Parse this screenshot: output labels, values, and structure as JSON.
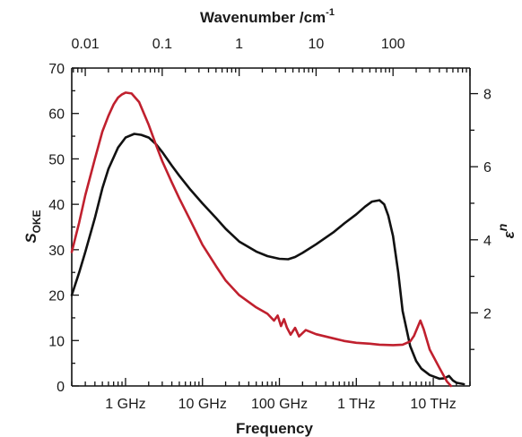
{
  "chart_data": {
    "type": "line",
    "title": "",
    "xlabel": "Frequency",
    "top_xlabel": "Wavenumber /cm",
    "top_xlabel_sup": "-1",
    "ylabel_main": "S",
    "ylabel_sub": "OKE",
    "ylabel_right_main": "ε",
    "ylabel_right_sup": "n",
    "x_scale": "log",
    "x_unit": "Hz",
    "xlim": [
      200000000,
      30000000000000
    ],
    "ylim": [
      0,
      70
    ],
    "y2lim": [
      0,
      8.7
    ],
    "x_tick_labels": [
      {
        "value": 1000000000,
        "label": "1 GHz"
      },
      {
        "value": 10000000000,
        "label": "10 GHz"
      },
      {
        "value": 100000000000,
        "label": "100 GHz"
      },
      {
        "value": 1000000000000,
        "label": "1 THz"
      },
      {
        "value": 10000000000000,
        "label": "10 THz"
      }
    ],
    "top_tick_labels": [
      {
        "value": 0.01,
        "label": "0.01"
      },
      {
        "value": 0.1,
        "label": "0.1"
      },
      {
        "value": 1,
        "label": "1"
      },
      {
        "value": 10,
        "label": "10"
      },
      {
        "value": 100,
        "label": "100"
      }
    ],
    "y_tick_labels": [
      "0",
      "10",
      "20",
      "30",
      "40",
      "50",
      "60",
      "70"
    ],
    "y2_tick_labels": [
      "2",
      "4",
      "6",
      "8"
    ],
    "series": [
      {
        "axis": "left",
        "color": "#111111",
        "x": [
          200000000,
          250000000,
          300000000,
          400000000,
          500000000,
          600000000,
          800000000,
          1000000000,
          1300000000,
          1600000000,
          2000000000,
          2500000000,
          3000000000,
          4000000000,
          5000000000,
          7000000000,
          10000000000,
          15000000000,
          20000000000,
          30000000000,
          50000000000,
          70000000000,
          100000000000,
          130000000000,
          160000000000,
          200000000000,
          300000000000,
          500000000000,
          700000000000,
          1000000000000,
          1300000000000,
          1600000000000,
          2000000000000,
          2300000000000,
          2600000000000,
          3000000000000,
          3500000000000,
          4000000000000,
          5000000000000,
          6000000000000,
          7000000000000,
          9000000000000,
          12000000000000,
          14000000000000,
          16000000000000,
          18000000000000,
          20000000000000,
          25000000000000
        ],
        "y": [
          20,
          25,
          29.5,
          37,
          43.5,
          47.8,
          52.5,
          54.7,
          55.5,
          55.3,
          54.7,
          53.2,
          51.5,
          48.5,
          46.3,
          43.2,
          40.2,
          37,
          34.6,
          31.8,
          29.6,
          28.6,
          28,
          27.9,
          28.4,
          29.3,
          31.2,
          33.8,
          35.8,
          37.8,
          39.5,
          40.6,
          40.9,
          40,
          37.5,
          33,
          25,
          16.5,
          8.8,
          5.5,
          3.8,
          2.4,
          1.6,
          1.7,
          2.2,
          1.2,
          0.7,
          0.4
        ]
      },
      {
        "axis": "left",
        "color": "#c0202e",
        "x": [
          200000000,
          250000000,
          300000000,
          400000000,
          500000000,
          600000000,
          700000000,
          800000000,
          900000000,
          1000000000,
          1200000000,
          1500000000,
          2000000000,
          2500000000,
          3000000000,
          4000000000,
          5000000000,
          7000000000,
          10000000000,
          15000000000,
          20000000000,
          30000000000,
          50000000000,
          70000000000,
          85000000000,
          95000000000,
          105000000000,
          115000000000,
          125000000000,
          140000000000,
          160000000000,
          180000000000,
          220000000000,
          300000000000,
          500000000000,
          700000000000,
          1000000000000,
          1500000000000,
          2000000000000,
          3000000000000,
          4000000000000,
          5000000000000,
          5600000000000,
          6200000000000,
          6800000000000,
          7500000000000,
          9000000000000,
          12000000000000,
          15000000000000,
          17000000000000
        ],
        "y": [
          29.5,
          36,
          42,
          50,
          56,
          59.5,
          62,
          63.5,
          64.2,
          64.6,
          64.4,
          62.5,
          57.5,
          53,
          49.5,
          44.8,
          41.3,
          36.4,
          31.1,
          26.4,
          23.2,
          20,
          17.3,
          15.9,
          14.4,
          15.5,
          13.2,
          14.7,
          12.9,
          11.3,
          12.8,
          10.9,
          12.3,
          11.4,
          10.5,
          9.9,
          9.5,
          9.3,
          9.1,
          9,
          9.1,
          9.8,
          11,
          12.8,
          14.4,
          12.5,
          8,
          4,
          1,
          0
        ]
      }
    ]
  }
}
